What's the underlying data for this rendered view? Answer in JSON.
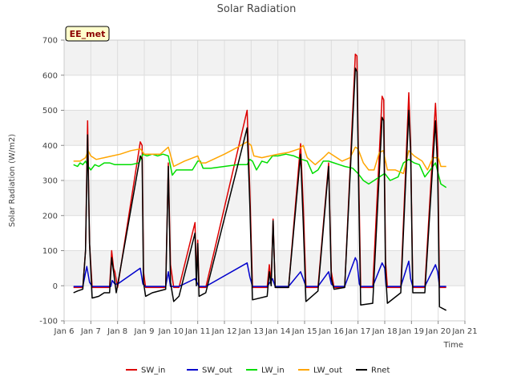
{
  "chart_data": {
    "type": "line",
    "title": "Solar Radiation",
    "xlabel": "Time",
    "ylabel": "Solar Radiation (W/m2)",
    "badge": "EE_met",
    "xlim": [
      6,
      21
    ],
    "ylim": [
      -100,
      700
    ],
    "x_ticks": [
      6,
      7,
      8,
      9,
      10,
      11,
      12,
      13,
      14,
      15,
      16,
      17,
      18,
      19,
      20,
      21
    ],
    "x_tick_labels": [
      "Jan 6",
      "Jan 7",
      "Jan 8",
      "Jan 9",
      "Jan 10",
      "Jan 11",
      "Jan 12",
      "Jan 13",
      "Jan 14",
      "Jan 15",
      "Jan 16",
      "Jan 17",
      "Jan 18",
      "Jan 19",
      "Jan 20",
      "Jan 21"
    ],
    "y_ticks": [
      -100,
      0,
      100,
      200,
      300,
      400,
      500,
      600,
      700
    ],
    "y_tick_labels": [
      "-100",
      "0",
      "100",
      "200",
      "300",
      "400",
      "500",
      "600",
      "700"
    ],
    "legend_position": "bottom",
    "grid": true,
    "series": [
      {
        "name": "SW_in",
        "color": "#dd0000",
        "points": [
          [
            6.35,
            -5
          ],
          [
            6.7,
            -5
          ],
          [
            6.8,
            100
          ],
          [
            6.88,
            470
          ],
          [
            6.95,
            120
          ],
          [
            7.05,
            -5
          ],
          [
            7.7,
            -5
          ],
          [
            7.78,
            100
          ],
          [
            7.85,
            50
          ],
          [
            7.9,
            40
          ],
          [
            8.0,
            -5
          ],
          [
            8.85,
            410
          ],
          [
            8.92,
            400
          ],
          [
            8.97,
            40
          ],
          [
            9.05,
            -5
          ],
          [
            9.8,
            -5
          ],
          [
            9.9,
            350
          ],
          [
            9.98,
            60
          ],
          [
            10.1,
            -5
          ],
          [
            10.3,
            -5
          ],
          [
            10.9,
            180
          ],
          [
            10.95,
            20
          ],
          [
            11.0,
            130
          ],
          [
            11.05,
            -5
          ],
          [
            11.3,
            -5
          ],
          [
            12.85,
            500
          ],
          [
            12.95,
            270
          ],
          [
            13.05,
            -5
          ],
          [
            13.6,
            -5
          ],
          [
            13.68,
            60
          ],
          [
            13.75,
            10
          ],
          [
            13.82,
            190
          ],
          [
            13.9,
            -5
          ],
          [
            14.4,
            -5
          ],
          [
            14.85,
            405
          ],
          [
            14.95,
            230
          ],
          [
            15.05,
            -5
          ],
          [
            15.5,
            -5
          ],
          [
            15.9,
            350
          ],
          [
            16.0,
            40
          ],
          [
            16.1,
            -5
          ],
          [
            16.5,
            -5
          ],
          [
            16.9,
            660
          ],
          [
            16.96,
            655
          ],
          [
            17.03,
            290
          ],
          [
            17.1,
            -5
          ],
          [
            17.55,
            -5
          ],
          [
            17.9,
            540
          ],
          [
            17.96,
            530
          ],
          [
            18.03,
            70
          ],
          [
            18.1,
            -5
          ],
          [
            18.6,
            -5
          ],
          [
            18.9,
            550
          ],
          [
            18.97,
            400
          ],
          [
            19.05,
            -5
          ],
          [
            19.5,
            -5
          ],
          [
            19.9,
            520
          ],
          [
            19.98,
            390
          ],
          [
            20.05,
            -5
          ],
          [
            20.3,
            -5
          ]
        ]
      },
      {
        "name": "SW_out",
        "color": "#0000cc",
        "points": [
          [
            6.35,
            -2
          ],
          [
            6.7,
            -2
          ],
          [
            6.85,
            55
          ],
          [
            6.95,
            10
          ],
          [
            7.05,
            -2
          ],
          [
            7.75,
            -2
          ],
          [
            7.8,
            15
          ],
          [
            7.9,
            5
          ],
          [
            8.0,
            5
          ],
          [
            8.85,
            50
          ],
          [
            8.95,
            5
          ],
          [
            9.05,
            -2
          ],
          [
            9.8,
            -2
          ],
          [
            9.9,
            40
          ],
          [
            9.98,
            -2
          ],
          [
            10.3,
            -2
          ],
          [
            10.9,
            20
          ],
          [
            11.0,
            5
          ],
          [
            11.05,
            -2
          ],
          [
            11.3,
            -2
          ],
          [
            12.85,
            65
          ],
          [
            12.95,
            25
          ],
          [
            13.05,
            -2
          ],
          [
            13.6,
            -2
          ],
          [
            13.8,
            20
          ],
          [
            13.9,
            -2
          ],
          [
            14.4,
            -2
          ],
          [
            14.85,
            40
          ],
          [
            14.95,
            20
          ],
          [
            15.05,
            -2
          ],
          [
            15.5,
            -2
          ],
          [
            15.9,
            40
          ],
          [
            16.0,
            5
          ],
          [
            16.1,
            -2
          ],
          [
            16.5,
            -2
          ],
          [
            16.9,
            80
          ],
          [
            16.96,
            70
          ],
          [
            17.05,
            5
          ],
          [
            17.1,
            -2
          ],
          [
            17.55,
            -2
          ],
          [
            17.9,
            65
          ],
          [
            18.0,
            50
          ],
          [
            18.05,
            -2
          ],
          [
            18.6,
            -2
          ],
          [
            18.9,
            70
          ],
          [
            18.97,
            20
          ],
          [
            19.05,
            -2
          ],
          [
            19.5,
            -2
          ],
          [
            19.9,
            60
          ],
          [
            19.98,
            40
          ],
          [
            20.05,
            -2
          ],
          [
            20.3,
            -2
          ]
        ]
      },
      {
        "name": "LW_in",
        "color": "#00dd00",
        "points": [
          [
            6.35,
            345
          ],
          [
            6.5,
            340
          ],
          [
            6.6,
            350
          ],
          [
            6.7,
            345
          ],
          [
            6.8,
            355
          ],
          [
            6.9,
            340
          ],
          [
            7.0,
            330
          ],
          [
            7.15,
            345
          ],
          [
            7.3,
            340
          ],
          [
            7.5,
            350
          ],
          [
            7.7,
            350
          ],
          [
            7.9,
            345
          ],
          [
            8.2,
            345
          ],
          [
            8.5,
            345
          ],
          [
            8.8,
            350
          ],
          [
            8.95,
            375
          ],
          [
            9.1,
            370
          ],
          [
            9.3,
            375
          ],
          [
            9.5,
            370
          ],
          [
            9.7,
            375
          ],
          [
            9.9,
            370
          ],
          [
            10.05,
            315
          ],
          [
            10.2,
            330
          ],
          [
            10.5,
            330
          ],
          [
            10.8,
            330
          ],
          [
            11.0,
            355
          ],
          [
            11.1,
            355
          ],
          [
            11.2,
            335
          ],
          [
            11.5,
            335
          ],
          [
            12.0,
            340
          ],
          [
            12.5,
            345
          ],
          [
            12.85,
            345
          ],
          [
            12.95,
            360
          ],
          [
            13.05,
            355
          ],
          [
            13.2,
            330
          ],
          [
            13.4,
            355
          ],
          [
            13.6,
            350
          ],
          [
            13.8,
            370
          ],
          [
            14.0,
            370
          ],
          [
            14.3,
            375
          ],
          [
            14.6,
            370
          ],
          [
            14.9,
            360
          ],
          [
            15.1,
            355
          ],
          [
            15.3,
            320
          ],
          [
            15.5,
            330
          ],
          [
            15.7,
            355
          ],
          [
            15.9,
            355
          ],
          [
            16.1,
            350
          ],
          [
            16.3,
            345
          ],
          [
            16.5,
            340
          ],
          [
            16.8,
            335
          ],
          [
            17.0,
            320
          ],
          [
            17.2,
            300
          ],
          [
            17.4,
            290
          ],
          [
            17.6,
            300
          ],
          [
            17.8,
            310
          ],
          [
            18.0,
            320
          ],
          [
            18.2,
            300
          ],
          [
            18.5,
            310
          ],
          [
            18.7,
            350
          ],
          [
            18.9,
            360
          ],
          [
            19.1,
            350
          ],
          [
            19.3,
            345
          ],
          [
            19.5,
            310
          ],
          [
            19.7,
            330
          ],
          [
            19.9,
            350
          ],
          [
            20.1,
            290
          ],
          [
            20.3,
            280
          ]
        ]
      },
      {
        "name": "LW_out",
        "color": "#ffa500",
        "points": [
          [
            6.35,
            355
          ],
          [
            6.6,
            355
          ],
          [
            6.8,
            365
          ],
          [
            6.9,
            385
          ],
          [
            7.0,
            370
          ],
          [
            7.2,
            360
          ],
          [
            7.5,
            365
          ],
          [
            7.8,
            370
          ],
          [
            8.1,
            375
          ],
          [
            8.5,
            385
          ],
          [
            8.85,
            390
          ],
          [
            9.0,
            375
          ],
          [
            9.3,
            375
          ],
          [
            9.6,
            375
          ],
          [
            9.9,
            395
          ],
          [
            10.1,
            340
          ],
          [
            10.5,
            355
          ],
          [
            11.0,
            370
          ],
          [
            11.1,
            350
          ],
          [
            11.3,
            350
          ],
          [
            12.0,
            375
          ],
          [
            12.5,
            395
          ],
          [
            12.85,
            410
          ],
          [
            13.0,
            400
          ],
          [
            13.1,
            370
          ],
          [
            13.4,
            365
          ],
          [
            13.7,
            370
          ],
          [
            14.0,
            375
          ],
          [
            14.4,
            380
          ],
          [
            14.8,
            390
          ],
          [
            14.95,
            400
          ],
          [
            15.1,
            365
          ],
          [
            15.4,
            345
          ],
          [
            15.7,
            365
          ],
          [
            15.9,
            380
          ],
          [
            16.1,
            370
          ],
          [
            16.4,
            355
          ],
          [
            16.7,
            365
          ],
          [
            16.9,
            395
          ],
          [
            17.0,
            390
          ],
          [
            17.2,
            350
          ],
          [
            17.4,
            330
          ],
          [
            17.6,
            330
          ],
          [
            17.8,
            380
          ],
          [
            17.95,
            385
          ],
          [
            18.1,
            330
          ],
          [
            18.4,
            330
          ],
          [
            18.7,
            320
          ],
          [
            18.9,
            385
          ],
          [
            19.1,
            370
          ],
          [
            19.4,
            355
          ],
          [
            19.6,
            330
          ],
          [
            19.8,
            365
          ],
          [
            20.0,
            365
          ],
          [
            20.1,
            340
          ],
          [
            20.3,
            340
          ]
        ]
      },
      {
        "name": "Rnet",
        "color": "#000000",
        "points": [
          [
            6.35,
            -20
          ],
          [
            6.5,
            -15
          ],
          [
            6.7,
            -10
          ],
          [
            6.8,
            100
          ],
          [
            6.88,
            430
          ],
          [
            6.95,
            120
          ],
          [
            7.05,
            -35
          ],
          [
            7.3,
            -30
          ],
          [
            7.5,
            -20
          ],
          [
            7.7,
            -20
          ],
          [
            7.78,
            80
          ],
          [
            7.85,
            40
          ],
          [
            7.95,
            -20
          ],
          [
            8.85,
            370
          ],
          [
            8.92,
            360
          ],
          [
            8.97,
            10
          ],
          [
            9.05,
            -30
          ],
          [
            9.3,
            -20
          ],
          [
            9.8,
            -10
          ],
          [
            9.9,
            340
          ],
          [
            9.98,
            10
          ],
          [
            10.1,
            -45
          ],
          [
            10.3,
            -30
          ],
          [
            10.9,
            150
          ],
          [
            10.95,
            0
          ],
          [
            11.0,
            120
          ],
          [
            11.05,
            -30
          ],
          [
            11.3,
            -20
          ],
          [
            12.85,
            450
          ],
          [
            12.95,
            230
          ],
          [
            13.05,
            -40
          ],
          [
            13.6,
            -30
          ],
          [
            13.68,
            40
          ],
          [
            13.75,
            0
          ],
          [
            13.82,
            185
          ],
          [
            13.9,
            -5
          ],
          [
            14.4,
            -5
          ],
          [
            14.85,
            375
          ],
          [
            14.95,
            180
          ],
          [
            15.05,
            -45
          ],
          [
            15.5,
            -15
          ],
          [
            15.9,
            340
          ],
          [
            16.0,
            20
          ],
          [
            16.1,
            -10
          ],
          [
            16.5,
            -5
          ],
          [
            16.9,
            620
          ],
          [
            16.96,
            610
          ],
          [
            17.03,
            240
          ],
          [
            17.1,
            -55
          ],
          [
            17.55,
            -50
          ],
          [
            17.9,
            480
          ],
          [
            17.96,
            470
          ],
          [
            18.03,
            40
          ],
          [
            18.1,
            -50
          ],
          [
            18.6,
            -20
          ],
          [
            18.9,
            500
          ],
          [
            18.97,
            380
          ],
          [
            19.05,
            -20
          ],
          [
            19.5,
            -20
          ],
          [
            19.9,
            470
          ],
          [
            19.98,
            330
          ],
          [
            20.05,
            -60
          ],
          [
            20.3,
            -70
          ]
        ]
      }
    ]
  }
}
